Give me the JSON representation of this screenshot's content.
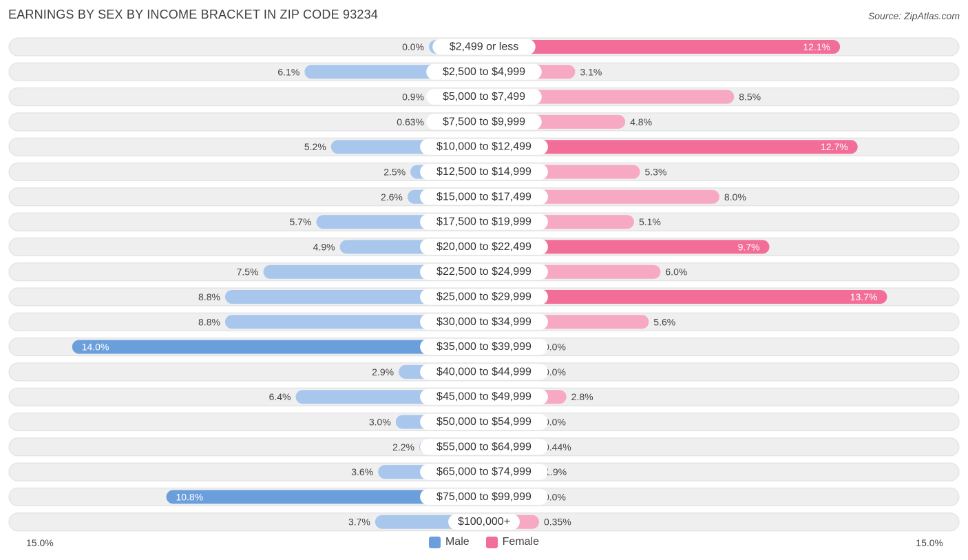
{
  "title": "EARNINGS BY SEX BY INCOME BRACKET IN ZIP CODE 93234",
  "source": "Source: ZipAtlas.com",
  "axis": {
    "left_label": "15.0%",
    "right_label": "15.0%"
  },
  "legend": [
    {
      "name": "Male",
      "color": "#6b9fdc"
    },
    {
      "name": "Female",
      "color": "#f26d98"
    }
  ],
  "colors": {
    "male_strong": "#6b9fdc",
    "male_light": "#a9c7ec",
    "female_strong": "#f26d98",
    "female_light": "#f7a8c2",
    "row_bg": "#efefef",
    "row_border": "#dedede"
  },
  "chart_data": {
    "type": "bar",
    "orientation": "horizontal-diverging",
    "title": "EARNINGS BY SEX BY INCOME BRACKET IN ZIP CODE 93234",
    "xlim": [
      -15,
      15
    ],
    "categories": [
      "$2,499 or less",
      "$2,500 to $4,999",
      "$5,000 to $7,499",
      "$7,500 to $9,999",
      "$10,000 to $12,499",
      "$12,500 to $14,999",
      "$15,000 to $17,499",
      "$17,500 to $19,999",
      "$20,000 to $22,499",
      "$22,500 to $24,999",
      "$25,000 to $29,999",
      "$30,000 to $34,999",
      "$35,000 to $39,999",
      "$40,000 to $44,999",
      "$45,000 to $49,999",
      "$50,000 to $54,999",
      "$55,000 to $64,999",
      "$65,000 to $74,999",
      "$75,000 to $99,999",
      "$100,000+"
    ],
    "series": [
      {
        "name": "Male",
        "values": [
          0.0,
          6.1,
          0.9,
          0.63,
          5.2,
          2.5,
          2.6,
          5.7,
          4.9,
          7.5,
          8.8,
          8.8,
          14.0,
          2.9,
          6.4,
          3.0,
          2.2,
          3.6,
          10.8,
          3.7
        ],
        "labels": [
          "0.0%",
          "6.1%",
          "0.9%",
          "0.63%",
          "5.2%",
          "2.5%",
          "2.6%",
          "5.7%",
          "4.9%",
          "7.5%",
          "8.8%",
          "8.8%",
          "14.0%",
          "2.9%",
          "6.4%",
          "3.0%",
          "2.2%",
          "3.6%",
          "10.8%",
          "3.7%"
        ]
      },
      {
        "name": "Female",
        "values": [
          12.1,
          3.1,
          8.5,
          4.8,
          12.7,
          5.3,
          8.0,
          5.1,
          9.7,
          6.0,
          13.7,
          5.6,
          0.0,
          0.0,
          2.8,
          0.0,
          0.44,
          1.9,
          0.0,
          0.35
        ],
        "labels": [
          "12.1%",
          "3.1%",
          "8.5%",
          "4.8%",
          "12.7%",
          "5.3%",
          "8.0%",
          "5.1%",
          "9.7%",
          "6.0%",
          "13.7%",
          "5.6%",
          "0.0%",
          "0.0%",
          "2.8%",
          "0.0%",
          "0.44%",
          "1.9%",
          "0.0%",
          "0.35%"
        ]
      }
    ]
  }
}
